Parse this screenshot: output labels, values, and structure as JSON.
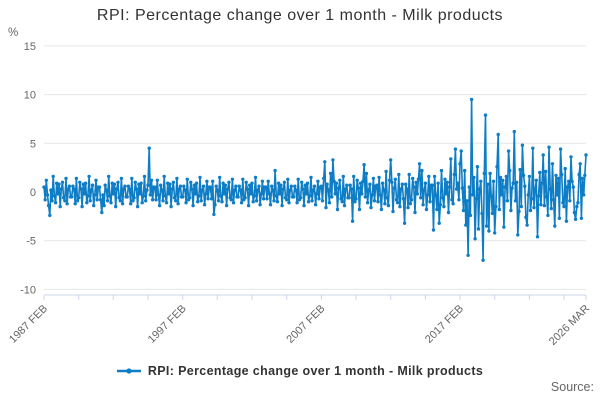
{
  "title": "RPI: Percentage change over 1 month - Milk products",
  "legend": {
    "label": "RPI: Percentage change over 1 month - Milk products"
  },
  "source_label": "Source:",
  "y_axis": {
    "unit_label": "%",
    "ticks": [
      15,
      10,
      5,
      0,
      -5,
      -10
    ]
  },
  "x_axis": {
    "tick_interval_months": 30,
    "labels": [
      {
        "m": 0,
        "text": "1987 FEB"
      },
      {
        "m": 120,
        "text": "1997 FEB"
      },
      {
        "m": 240,
        "text": "2007 FEB"
      },
      {
        "m": 360,
        "text": "2017 FEB"
      },
      {
        "m": 469,
        "text": "2026 MAR"
      }
    ]
  },
  "colors": {
    "series": "#0e7dc5",
    "grid": "#e6e6e6",
    "axis": "#ccd6eb",
    "title_text": "#333333",
    "label_text": "#666666"
  },
  "chart_data": {
    "type": "line",
    "title": "RPI: Percentage change over 1 month - Milk products",
    "series_name": "RPI: Percentage change over 1 month - Milk products",
    "xlabel": "",
    "ylabel": "%",
    "x_start": "1987 FEB",
    "x_end": "2026 MAR",
    "frequency": "monthly",
    "ylim": [
      -10.5,
      15.5
    ],
    "y_ticks": [
      15,
      10,
      5,
      0,
      -5,
      -10
    ],
    "x_tick_labels": [
      "1987 FEB",
      "1997 FEB",
      "2007 FEB",
      "2017 FEB",
      "2026 MAR"
    ],
    "legend_position": "bottom-center",
    "grid": "horizontal-only",
    "values": [
      0.5,
      -0.8,
      1.2,
      -0.3,
      -1.4,
      -2.4,
      0.2,
      -0.9,
      1.6,
      -0.4,
      -1.1,
      0.9,
      -0.2,
      0.8,
      -1.5,
      0.3,
      1.0,
      -0.6,
      -0.9,
      1.4,
      -1.2,
      0.3,
      0.6,
      -0.5,
      -0.5,
      0.6,
      0.3,
      -1.2,
      1.4,
      -0.9,
      -0.6,
      1.0,
      0.3,
      -1.5,
      0.8,
      -0.2,
      0.9,
      -1.1,
      -0.4,
      1.6,
      -0.9,
      0.2,
      0.7,
      -1.4,
      -0.3,
      1.2,
      -0.8,
      0.5,
      0.5,
      -0.8,
      -2.1,
      -0.3,
      -1.4,
      0.7,
      0.2,
      -0.9,
      1.6,
      -0.4,
      -1.1,
      0.9,
      -0.2,
      0.8,
      -1.5,
      0.3,
      1.0,
      -0.6,
      -0.9,
      1.4,
      -1.2,
      0.3,
      0.6,
      -0.5,
      -0.5,
      0.6,
      0.3,
      -1.2,
      1.4,
      -0.9,
      -0.6,
      1.0,
      0.3,
      -1.5,
      0.8,
      -0.2,
      0.9,
      -1.1,
      -0.4,
      1.6,
      -0.9,
      0.2,
      0.7,
      4.5,
      -0.3,
      1.2,
      -0.8,
      0.5,
      0.5,
      -0.8,
      1.2,
      -0.3,
      -1.4,
      0.7,
      0.2,
      -0.9,
      1.6,
      -0.4,
      -1.1,
      0.9,
      -0.2,
      0.8,
      -1.5,
      0.3,
      1.0,
      -0.6,
      -0.9,
      1.4,
      -1.2,
      0.3,
      0.6,
      -0.5,
      -0.5,
      0.6,
      0.2,
      -1.1,
      1.3,
      -0.8,
      -0.6,
      1.0,
      0.3,
      -1.4,
      0.7,
      -0.2,
      0.9,
      -1.0,
      -0.4,
      1.5,
      -0.9,
      0.2,
      0.6,
      -1.3,
      -0.2,
      1.1,
      -0.7,
      0.5,
      0.5,
      -0.7,
      1.1,
      -2.3,
      -1.3,
      0.6,
      0.2,
      -0.9,
      1.5,
      -0.4,
      -1.0,
      0.9,
      -0.2,
      0.7,
      -1.4,
      0.3,
      1.0,
      -0.6,
      -0.8,
      1.3,
      -1.1,
      0.2,
      0.6,
      -0.5,
      -0.5,
      0.6,
      0.2,
      -1.1,
      1.3,
      -0.8,
      -0.6,
      1.0,
      0.3,
      -1.4,
      0.7,
      -0.2,
      0.9,
      -1.0,
      -0.4,
      1.5,
      -0.9,
      0.2,
      0.6,
      -1.3,
      -0.2,
      1.1,
      -0.7,
      0.5,
      0.5,
      -0.7,
      1.1,
      -0.2,
      -1.3,
      0.6,
      0.2,
      -0.9,
      2.2,
      -0.4,
      -1.0,
      0.9,
      -0.2,
      0.7,
      -1.4,
      0.3,
      1.0,
      -0.6,
      -0.8,
      1.3,
      -1.1,
      0.2,
      0.6,
      -0.5,
      -0.5,
      0.6,
      0.2,
      -1.1,
      1.3,
      -0.8,
      -0.6,
      1.0,
      0.3,
      -1.4,
      0.7,
      -0.2,
      0.9,
      -1.0,
      -0.4,
      1.5,
      -0.9,
      0.2,
      0.6,
      -1.3,
      -0.2,
      1.1,
      -0.7,
      0.5,
      0.6,
      -0.9,
      1.4,
      3.1,
      -1.6,
      0.8,
      0.2,
      -1.1,
      1.9,
      -0.5,
      3.3,
      1.1,
      -0.2,
      0.9,
      -1.8,
      0.4,
      1.2,
      -0.7,
      -1.0,
      1.6,
      -1.4,
      0.3,
      0.7,
      -0.6,
      -0.6,
      0.7,
      0.3,
      -3.0,
      1.6,
      -1.0,
      -0.7,
      1.2,
      0.4,
      -1.8,
      0.9,
      -0.2,
      1.1,
      2.8,
      -0.5,
      1.9,
      -1.1,
      0.2,
      0.8,
      -1.6,
      -0.3,
      1.4,
      -0.9,
      0.6,
      0.7,
      -1.0,
      1.5,
      -0.3,
      -1.8,
      0.9,
      0.2,
      -1.2,
      2.1,
      -0.6,
      -1.4,
      1.2,
      3.3,
      1.0,
      -2.0,
      0.4,
      1.3,
      -0.8,
      -1.1,
      1.8,
      -1.5,
      0.3,
      0.8,
      -0.7,
      -3.2,
      0.8,
      0.3,
      -1.6,
      1.8,
      -1.2,
      -0.8,
      1.4,
      0.5,
      -2.1,
      1.0,
      -0.2,
      1.3,
      2.9,
      -0.6,
      2.2,
      -1.3,
      0.2,
      0.9,
      -1.8,
      -0.3,
      1.6,
      -1.0,
      0.7,
      0.7,
      -3.9,
      1.6,
      -0.3,
      -1.8,
      0.9,
      -3.2,
      -1.3,
      2.2,
      -0.6,
      -1.5,
      1.3,
      -0.2,
      1.0,
      -2.1,
      0.5,
      3.4,
      -0.8,
      -1.2,
      1.8,
      4.4,
      0.3,
      0.9,
      -0.8,
      2.9,
      4.2,
      0.4,
      -1.9,
      2.2,
      -3.4,
      -0.9,
      -6.5,
      0.5,
      -2.4,
      9.5,
      -0.3,
      1.5,
      -4.8,
      -0.7,
      2.6,
      -3.8,
      0.3,
      1.1,
      -2.2,
      -7.0,
      1.9,
      7.9,
      -3.5,
      0.8,
      -4.0,
      1.9,
      -0.4,
      -2.2,
      1.1,
      -4.2,
      -1.5,
      2.6,
      5.9,
      -1.8,
      1.5,
      -0.3,
      1.2,
      -3.6,
      0.5,
      1.6,
      -0.9,
      4.2,
      2.2,
      -1.9,
      0.4,
      0.9,
      6.2,
      -0.9,
      1.0,
      -4.4,
      -2.0,
      2.3,
      -1.5,
      4.8,
      1.7,
      0.6,
      -2.6,
      -3.4,
      -0.3,
      1.6,
      -1.9,
      -0.7,
      4.5,
      -1.6,
      0.3,
      1.2,
      -4.6,
      -0.4,
      2.0,
      -1.3,
      0.9,
      3.8,
      -1.4,
      2.1,
      -0.5,
      -2.4,
      4.6,
      0.3,
      -1.7,
      2.9,
      -0.8,
      -3.5,
      1.7,
      -0.3,
      1.4,
      -2.7,
      4.4,
      1.8,
      -1.1,
      -1.5,
      2.4,
      -3.0,
      0.5,
      1.1,
      -0.9,
      3.6,
      1.1,
      0.5,
      -2.1,
      -2.8,
      -1.5,
      -1.1,
      1.8,
      2.9,
      -2.7,
      1.4,
      -0.3,
      1.7,
      3.8
    ]
  }
}
